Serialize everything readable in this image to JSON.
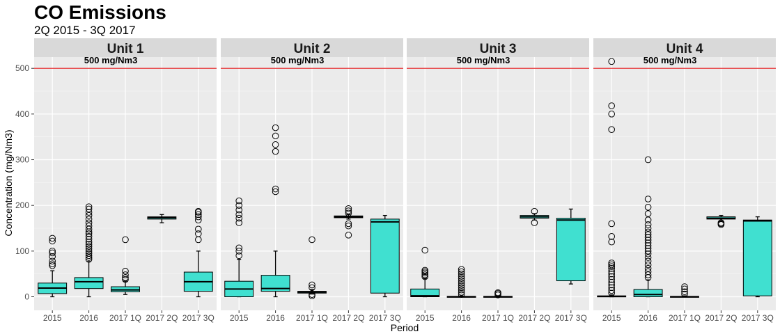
{
  "chart_data": {
    "type": "boxplot",
    "title": "CO Emissions",
    "subtitle": "2Q 2015 - 3Q 2017",
    "xlabel": "Period",
    "ylabel": "Concentration (mg/Nm3)",
    "ylim": [
      -25,
      560
    ],
    "yticks": [
      0,
      100,
      200,
      300,
      400,
      500
    ],
    "categories": [
      "2015",
      "2016",
      "2017 1Q",
      "2017 2Q",
      "2017 3Q"
    ],
    "grid": true,
    "reference_line": {
      "value": 500,
      "label": "500 mg/Nm3",
      "color": "#e41a1c"
    },
    "box_fill": "#40e0d0",
    "panel_bg": "#ebebeb",
    "strip_bg": "#d9d9d9",
    "facets": [
      {
        "name": "Unit 1",
        "boxes": [
          {
            "q1": 7,
            "median": 19,
            "q3": 30,
            "lower": 0,
            "upper": 57,
            "outliers": [
              68,
              72,
              78,
              88,
              96,
              100,
              122,
              128
            ]
          },
          {
            "q1": 18,
            "median": 33,
            "q3": 42,
            "lower": 0,
            "upper": 77,
            "outliers": [
              82,
              86,
              90,
              95,
              100,
              105,
              110,
              115,
              120,
              126,
              132,
              138,
              142,
              148,
              155,
              162,
              170,
              178,
              185,
              192,
              197
            ]
          },
          {
            "q1": 11,
            "median": 15,
            "q3": 22,
            "lower": 5,
            "upper": 34,
            "outliers": [
              38,
              42,
              48,
              56,
              125
            ]
          },
          {
            "q1": 170,
            "median": 173,
            "q3": 175,
            "lower": 162,
            "upper": 180,
            "outliers": []
          },
          {
            "q1": 12,
            "median": 33,
            "q3": 54,
            "lower": 0,
            "upper": 100,
            "outliers": [
              125,
              138,
              148,
              168,
              175,
              180,
              185,
              187
            ]
          }
        ]
      },
      {
        "name": "Unit 2",
        "boxes": [
          {
            "q1": 0,
            "median": 17,
            "q3": 34,
            "lower": 0,
            "upper": 82,
            "outliers": [
              90,
              100,
              107,
              162,
              172,
              180,
              190,
              200,
              210
            ]
          },
          {
            "q1": 12,
            "median": 18,
            "q3": 47,
            "lower": 0,
            "upper": 100,
            "outliers": [
              230,
              236,
              318,
              333,
              352,
              370
            ]
          },
          {
            "q1": 8,
            "median": 10,
            "q3": 12,
            "lower": 6,
            "upper": 16,
            "outliers": [
              2,
              5,
              20,
              26,
              125
            ]
          },
          {
            "q1": 173,
            "median": 175,
            "q3": 177,
            "lower": 170,
            "upper": 180,
            "outliers": [
              135,
              155,
              160,
              183,
              188,
              193
            ]
          },
          {
            "q1": 8,
            "median": 164,
            "q3": 170,
            "lower": 0,
            "upper": 178,
            "outliers": []
          }
        ]
      },
      {
        "name": "Unit 3",
        "boxes": [
          {
            "q1": 0,
            "median": 2,
            "q3": 17,
            "lower": 0,
            "upper": 40,
            "outliers": [
              44,
              48,
              52,
              55,
              58,
              102
            ]
          },
          {
            "q1": 0,
            "median": 0,
            "q3": 1,
            "lower": 0,
            "upper": 2,
            "outliers": [
              5,
              10,
              15,
              20,
              25,
              30,
              35,
              40,
              45,
              50,
              55,
              60
            ]
          },
          {
            "q1": 0,
            "median": 0,
            "q3": 1,
            "lower": 0,
            "upper": 2,
            "outliers": [
              4,
              7,
              9
            ]
          },
          {
            "q1": 172,
            "median": 175,
            "q3": 178,
            "lower": 168,
            "upper": 182,
            "outliers": [
              162,
              187
            ]
          },
          {
            "q1": 35,
            "median": 168,
            "q3": 172,
            "lower": 28,
            "upper": 192,
            "outliers": []
          }
        ]
      },
      {
        "name": "Unit 4",
        "boxes": [
          {
            "q1": 0,
            "median": 1,
            "q3": 2,
            "lower": 0,
            "upper": 4,
            "outliers": [
              8,
              14,
              20,
              26,
              32,
              38,
              44,
              50,
              56,
              62,
              66,
              70,
              74,
              120,
              132,
              160,
              366,
              400,
              418,
              515
            ]
          },
          {
            "q1": 0,
            "median": 5,
            "q3": 16,
            "lower": 0,
            "upper": 37,
            "outliers": [
              42,
              48,
              55,
              62,
              70,
              78,
              86,
              94,
              100,
              106,
              112,
              118,
              124,
              130,
              136,
              142,
              150,
              158,
              168,
              182,
              196,
              214,
              300
            ]
          },
          {
            "q1": 0,
            "median": 0,
            "q3": 1,
            "lower": 0,
            "upper": 2,
            "outliers": [
              6,
              11,
              17,
              22
            ]
          },
          {
            "q1": 170,
            "median": 172,
            "q3": 175,
            "lower": 165,
            "upper": 178,
            "outliers": [
              158,
              160,
              162
            ]
          },
          {
            "q1": 2,
            "median": 166,
            "q3": 168,
            "lower": 0,
            "upper": 175,
            "outliers": []
          }
        ]
      }
    ]
  }
}
